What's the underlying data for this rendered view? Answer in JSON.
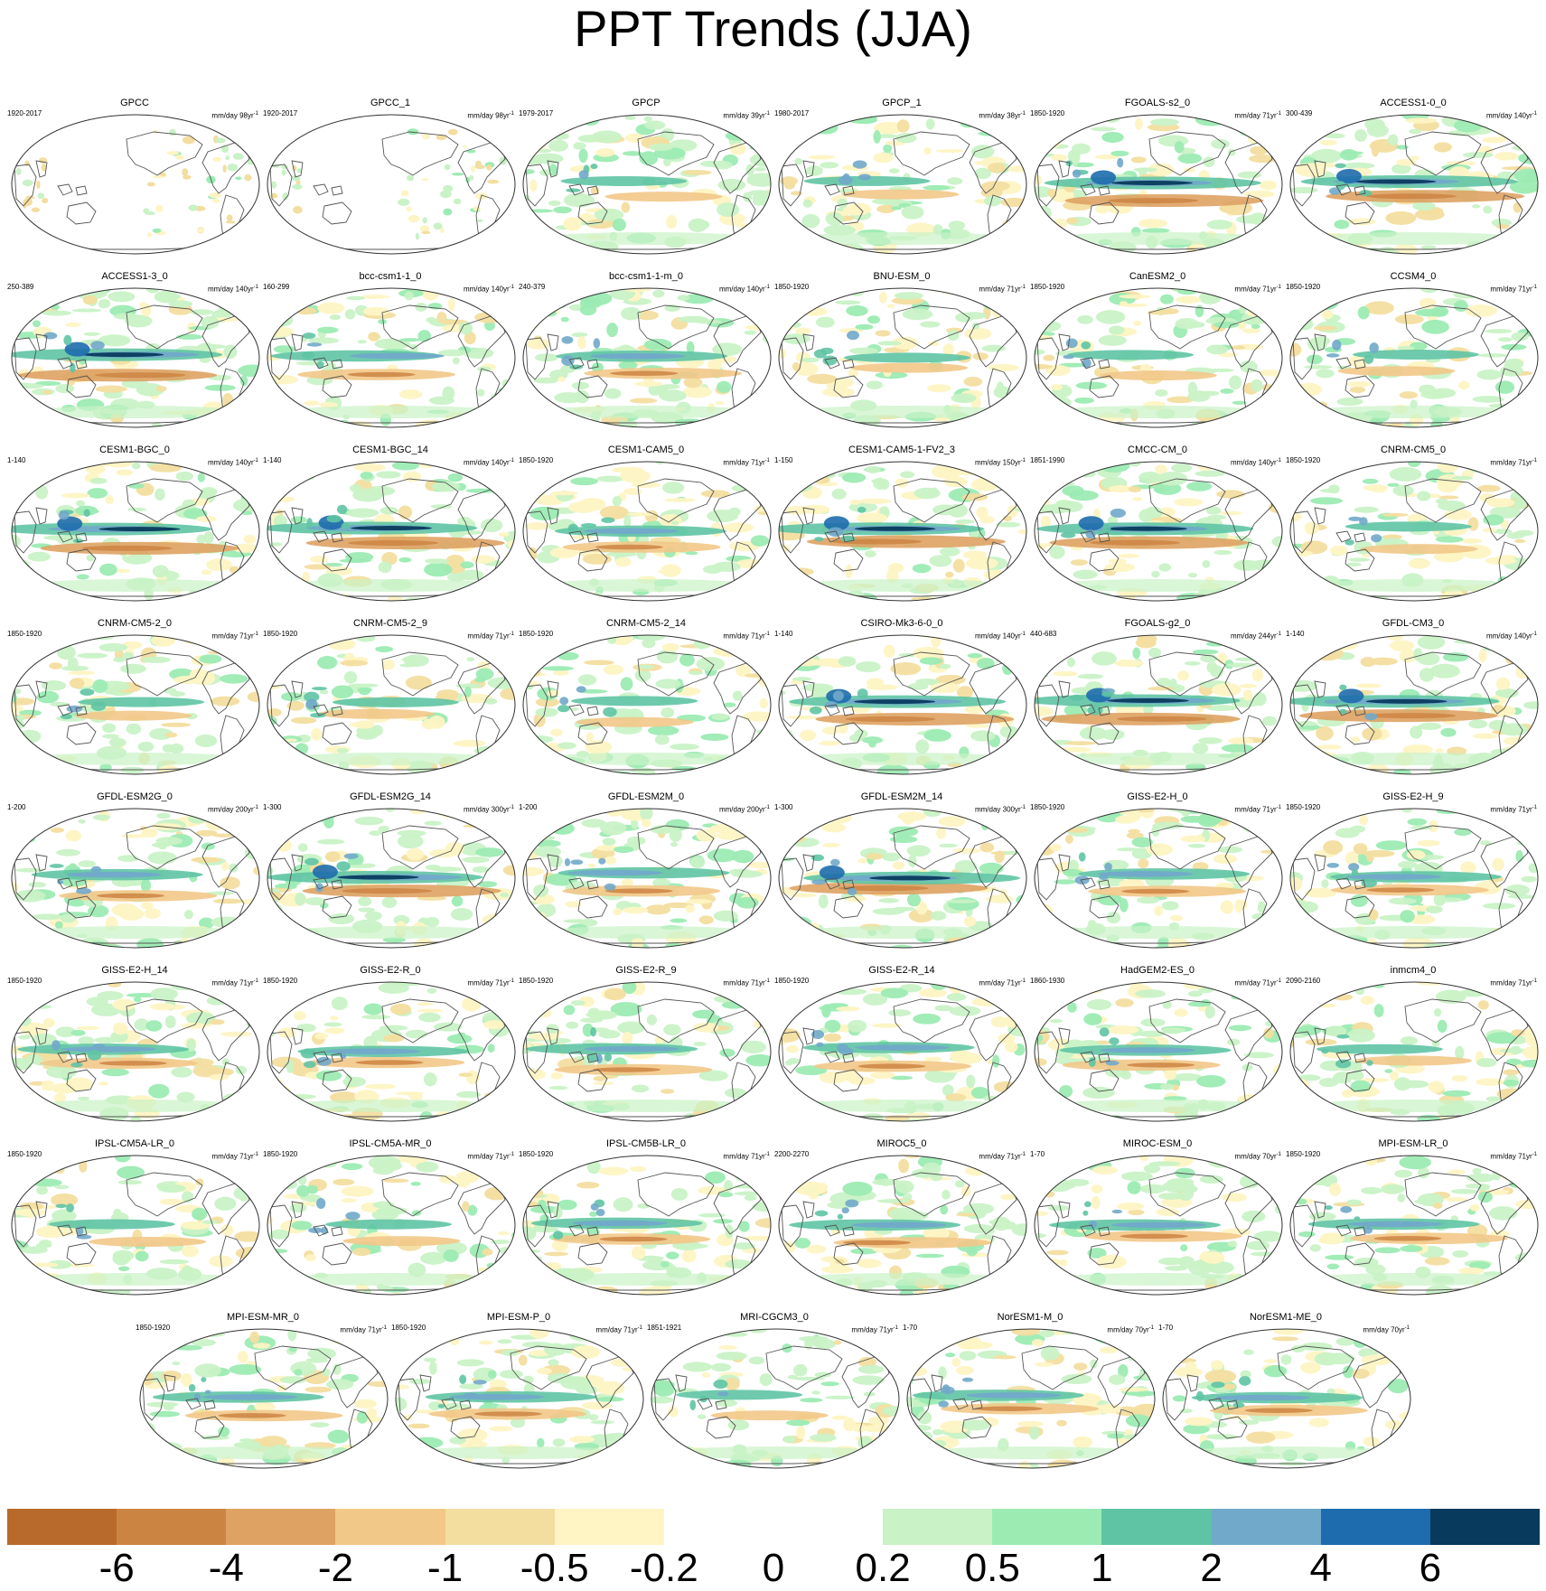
{
  "title": "PPT Trends (JJA)",
  "panels": [
    {
      "name": "GPCC",
      "period": "1920-2017",
      "units": "mm/day 98yr",
      "sup": "-1",
      "style": "obs"
    },
    {
      "name": "GPCC_1",
      "period": "1920-2017",
      "units": "mm/day 98yr",
      "sup": "-1",
      "style": "obs"
    },
    {
      "name": "GPCP",
      "period": "1979-2017",
      "units": "mm/day 39yr",
      "sup": "-1",
      "style": "weak"
    },
    {
      "name": "GPCP_1",
      "period": "1980-2017",
      "units": "mm/day 38yr",
      "sup": "-1",
      "style": "weak"
    },
    {
      "name": "FGOALS-s2_0",
      "period": "1850-1920",
      "units": "mm/day 71yr",
      "sup": "-1",
      "style": "strong"
    },
    {
      "name": "ACCESS1-0_0",
      "period": "300-439",
      "units": "mm/day 140yr",
      "sup": "-1",
      "style": "strong"
    },
    {
      "name": "ACCESS1-3_0",
      "period": "250-389",
      "units": "mm/day 140yr",
      "sup": "-1",
      "style": "strong"
    },
    {
      "name": "bcc-csm1-1_0",
      "period": "160-299",
      "units": "mm/day 140yr",
      "sup": "-1",
      "style": "moderate"
    },
    {
      "name": "bcc-csm1-1-m_0",
      "period": "240-379",
      "units": "mm/day 140yr",
      "sup": "-1",
      "style": "moderate"
    },
    {
      "name": "BNU-ESM_0",
      "period": "1850-1920",
      "units": "mm/day 71yr",
      "sup": "-1",
      "style": "weak"
    },
    {
      "name": "CanESM2_0",
      "period": "1850-1920",
      "units": "mm/day 71yr",
      "sup": "-1",
      "style": "weak"
    },
    {
      "name": "CCSM4_0",
      "period": "1850-1920",
      "units": "mm/day 71yr",
      "sup": "-1",
      "style": "weak"
    },
    {
      "name": "CESM1-BGC_0",
      "period": "1-140",
      "units": "mm/day 140yr",
      "sup": "-1",
      "style": "strong"
    },
    {
      "name": "CESM1-BGC_14",
      "period": "1-140",
      "units": "mm/day 140yr",
      "sup": "-1",
      "style": "strong"
    },
    {
      "name": "CESM1-CAM5_0",
      "period": "1850-1920",
      "units": "mm/day 71yr",
      "sup": "-1",
      "style": "moderate"
    },
    {
      "name": "CESM1-CAM5-1-FV2_3",
      "period": "1-150",
      "units": "mm/day 150yr",
      "sup": "-1",
      "style": "strong"
    },
    {
      "name": "CMCC-CM_0",
      "period": "1851-1990",
      "units": "mm/day 140yr",
      "sup": "-1",
      "style": "strong"
    },
    {
      "name": "CNRM-CM5_0",
      "period": "1850-1920",
      "units": "mm/day 71yr",
      "sup": "-1",
      "style": "weak"
    },
    {
      "name": "CNRM-CM5-2_0",
      "period": "1850-1920",
      "units": "mm/day 71yr",
      "sup": "-1",
      "style": "weak"
    },
    {
      "name": "CNRM-CM5-2_9",
      "period": "1850-1920",
      "units": "mm/day 71yr",
      "sup": "-1",
      "style": "weak"
    },
    {
      "name": "CNRM-CM5-2_14",
      "period": "1850-1920",
      "units": "mm/day 71yr",
      "sup": "-1",
      "style": "weak"
    },
    {
      "name": "CSIRO-Mk3-6-0_0",
      "period": "1-140",
      "units": "mm/day 140yr",
      "sup": "-1",
      "style": "strong"
    },
    {
      "name": "FGOALS-g2_0",
      "period": "440-683",
      "units": "mm/day 244yr",
      "sup": "-1",
      "style": "strong"
    },
    {
      "name": "GFDL-CM3_0",
      "period": "1-140",
      "units": "mm/day 140yr",
      "sup": "-1",
      "style": "strong"
    },
    {
      "name": "GFDL-ESM2G_0",
      "period": "1-200",
      "units": "mm/day 200yr",
      "sup": "-1",
      "style": "moderate"
    },
    {
      "name": "GFDL-ESM2G_14",
      "period": "1-300",
      "units": "mm/day 300yr",
      "sup": "-1",
      "style": "strong"
    },
    {
      "name": "GFDL-ESM2M_0",
      "period": "1-200",
      "units": "mm/day 200yr",
      "sup": "-1",
      "style": "moderate"
    },
    {
      "name": "GFDL-ESM2M_14",
      "period": "1-300",
      "units": "mm/day 300yr",
      "sup": "-1",
      "style": "strong"
    },
    {
      "name": "GISS-E2-H_0",
      "period": "1850-1920",
      "units": "mm/day 71yr",
      "sup": "-1",
      "style": "moderate"
    },
    {
      "name": "GISS-E2-H_9",
      "period": "1850-1920",
      "units": "mm/day 71yr",
      "sup": "-1",
      "style": "moderate"
    },
    {
      "name": "GISS-E2-H_14",
      "period": "1850-1920",
      "units": "mm/day 71yr",
      "sup": "-1",
      "style": "moderate"
    },
    {
      "name": "GISS-E2-R_0",
      "period": "1850-1920",
      "units": "mm/day 71yr",
      "sup": "-1",
      "style": "moderate"
    },
    {
      "name": "GISS-E2-R_9",
      "period": "1850-1920",
      "units": "mm/day 71yr",
      "sup": "-1",
      "style": "moderate"
    },
    {
      "name": "GISS-E2-R_14",
      "period": "1850-1920",
      "units": "mm/day 71yr",
      "sup": "-1",
      "style": "moderate"
    },
    {
      "name": "HadGEM2-ES_0",
      "period": "1860-1930",
      "units": "mm/day 71yr",
      "sup": "-1",
      "style": "moderate"
    },
    {
      "name": "inmcm4_0",
      "period": "2090-2160",
      "units": "mm/day 71yr",
      "sup": "-1",
      "style": "weak"
    },
    {
      "name": "IPSL-CM5A-LR_0",
      "period": "1850-1920",
      "units": "mm/day 71yr",
      "sup": "-1",
      "style": "weak"
    },
    {
      "name": "IPSL-CM5A-MR_0",
      "period": "1850-1920",
      "units": "mm/day 71yr",
      "sup": "-1",
      "style": "weak"
    },
    {
      "name": "IPSL-CM5B-LR_0",
      "period": "1850-1920",
      "units": "mm/day 71yr",
      "sup": "-1",
      "style": "moderate"
    },
    {
      "name": "MIROC5_0",
      "period": "2200-2270",
      "units": "mm/day 71yr",
      "sup": "-1",
      "style": "moderate"
    },
    {
      "name": "MIROC-ESM_0",
      "period": "1-70",
      "units": "mm/day 70yr",
      "sup": "-1",
      "style": "moderate"
    },
    {
      "name": "MPI-ESM-LR_0",
      "period": "1850-1920",
      "units": "mm/day 71yr",
      "sup": "-1",
      "style": "moderate"
    },
    {
      "name": "MPI-ESM-MR_0",
      "period": "1850-1920",
      "units": "mm/day 71yr",
      "sup": "-1",
      "style": "moderate"
    },
    {
      "name": "MPI-ESM-P_0",
      "period": "1850-1920",
      "units": "mm/day 71yr",
      "sup": "-1",
      "style": "moderate"
    },
    {
      "name": "MRI-CGCM3_0",
      "period": "1851-1921",
      "units": "mm/day 71yr",
      "sup": "-1",
      "style": "weak"
    },
    {
      "name": "NorESM1-M_0",
      "period": "1-70",
      "units": "mm/day 70yr",
      "sup": "-1",
      "style": "moderate"
    },
    {
      "name": "NorESM1-ME_0",
      "period": "1-70",
      "units": "mm/day 70yr",
      "sup": "-1",
      "style": "moderate"
    }
  ],
  "colorbar": {
    "colors": [
      "#b86a2c",
      "#cc8443",
      "#dea263",
      "#f2c888",
      "#f3dea0",
      "#fef4c4",
      "#ffffff",
      "#ffffff",
      "#c9f2c6",
      "#9cebb3",
      "#5fc4a4",
      "#71a9ca",
      "#1e6bad",
      "#073a5c"
    ],
    "labels": [
      "-6",
      "-4",
      "-2",
      "-1",
      "-0.5",
      "-0.2",
      "0",
      "0.2",
      "0.5",
      "1",
      "2",
      "4",
      "6"
    ]
  }
}
